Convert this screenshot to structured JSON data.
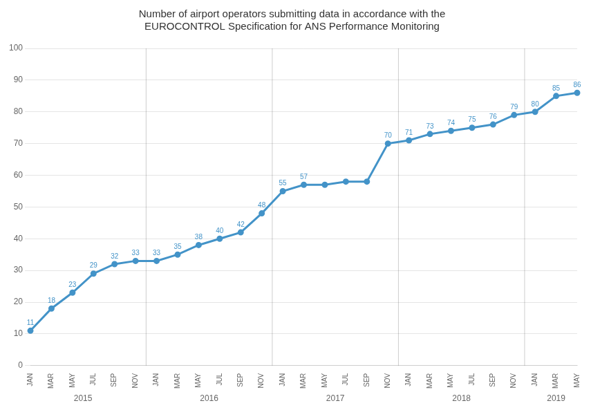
{
  "chart_data": {
    "type": "line",
    "title": [
      "Number of airport operators submitting data in accordance with the",
      "EUROCONTROL Specification for ANS Performance Monitoring"
    ],
    "categories": [
      "JAN",
      "MAR",
      "MAY",
      "JUL",
      "SEP",
      "NOV",
      "JAN",
      "MAR",
      "MAY",
      "JUL",
      "SEP",
      "NOV",
      "JAN",
      "MAR",
      "MAY",
      "JUL",
      "SEP",
      "NOV",
      "JAN",
      "MAR",
      "MAY",
      "JUL",
      "SEP",
      "NOV",
      "JAN",
      "MAR",
      "MAY"
    ],
    "values": [
      11,
      18,
      23,
      29,
      32,
      33,
      33,
      35,
      38,
      40,
      42,
      48,
      55,
      57,
      57,
      58,
      58,
      70,
      71,
      73,
      74,
      75,
      76,
      79,
      80,
      85,
      86
    ],
    "data_labels": true,
    "value_labels": [
      "11",
      "18",
      "23",
      "29",
      "32",
      "33",
      "33",
      "35",
      "38",
      "40",
      "42",
      "48",
      "55",
      "57",
      null,
      null,
      null,
      "70",
      "71",
      "73",
      "74",
      "75",
      "76",
      "79",
      "80",
      "85",
      "86"
    ],
    "annotations": [
      {
        "text": "2015",
        "from": 0,
        "to": 5
      },
      {
        "text": "2016",
        "from": 6,
        "to": 11
      },
      {
        "text": "2017",
        "from": 12,
        "to": 17
      },
      {
        "text": "2018",
        "from": 18,
        "to": 23
      },
      {
        "text": "2019",
        "from": 24,
        "to": 26
      }
    ],
    "color": "#4393C8",
    "ylim": [
      0,
      100
    ],
    "yticks": [
      0,
      10,
      20,
      30,
      40,
      50,
      60,
      70,
      80,
      90,
      100
    ],
    "grid": true
  }
}
